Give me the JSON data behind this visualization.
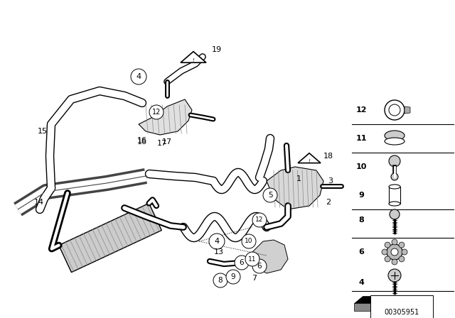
{
  "bg_color": "#ffffff",
  "part_number": "00305951",
  "fig_w": 6.4,
  "fig_h": 4.48,
  "dpi": 100
}
